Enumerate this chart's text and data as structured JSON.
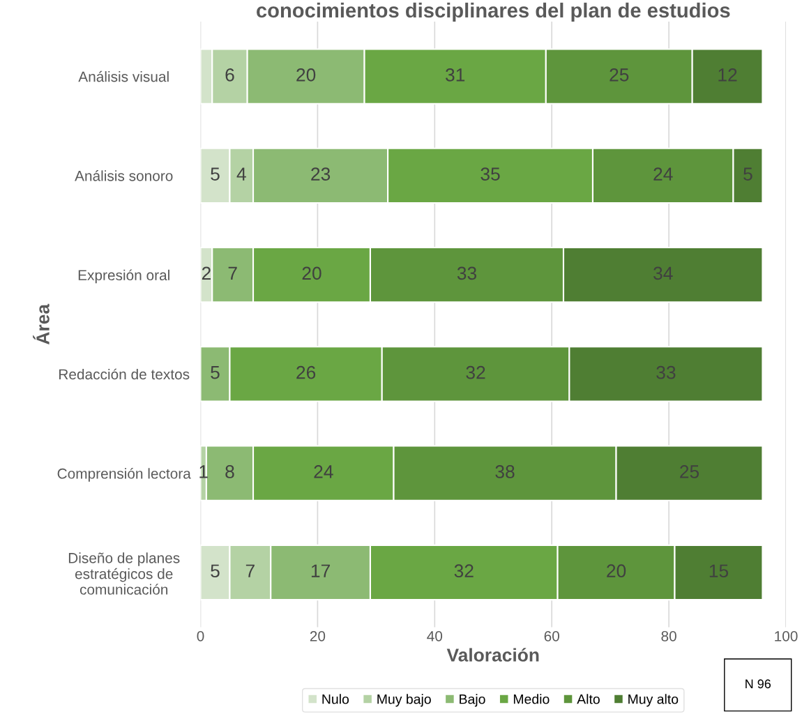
{
  "chart_data": {
    "type": "bar",
    "orientation": "horizontal",
    "stacked": true,
    "title": "conocimientos disciplinares del plan de estudios",
    "xlabel": "Valoración",
    "ylabel": "Área",
    "categories": [
      "Análisis visual",
      "Análisis sonoro",
      "Expresión oral",
      "Redacción de textos",
      "Comprensión lectora",
      "Diseño de planes estratégicos de comunicación"
    ],
    "series": [
      {
        "name": "Nulo",
        "color": "#d3e3ca",
        "values": [
          2,
          5,
          2,
          0,
          0,
          5
        ],
        "value_labels": [
          null,
          "5",
          "2",
          null,
          null,
          "5"
        ]
      },
      {
        "name": "Muy bajo",
        "color": "#b4d2a4",
        "values": [
          6,
          4,
          0,
          0,
          1,
          7
        ],
        "value_labels": [
          "6",
          "4",
          null,
          null,
          "1",
          "7"
        ]
      },
      {
        "name": "Bajo",
        "color": "#8cba73",
        "values": [
          20,
          23,
          7,
          5,
          8,
          17
        ],
        "value_labels": [
          "20",
          "23",
          "7",
          "5",
          "8",
          "17"
        ]
      },
      {
        "name": "Medio",
        "color": "#6aa744",
        "values": [
          31,
          35,
          20,
          26,
          24,
          32
        ],
        "value_labels": [
          "31",
          "35",
          "20",
          "26",
          "24",
          "32"
        ]
      },
      {
        "name": "Alto",
        "color": "#5e953c",
        "values": [
          25,
          24,
          33,
          32,
          38,
          20
        ],
        "value_labels": [
          "25",
          "24",
          "33",
          "32",
          "38",
          "20"
        ]
      },
      {
        "name": "Muy alto",
        "color": "#4f7e33",
        "values": [
          12,
          5,
          34,
          33,
          25,
          15
        ],
        "value_labels": [
          "12",
          "5",
          "34",
          "33",
          "25",
          "15"
        ]
      }
    ],
    "xlim": [
      0,
      100
    ],
    "xticks": [
      0,
      20,
      40,
      60,
      80,
      100
    ],
    "grid": "x",
    "legend": "bottom",
    "annotations": [
      "N 96"
    ]
  }
}
